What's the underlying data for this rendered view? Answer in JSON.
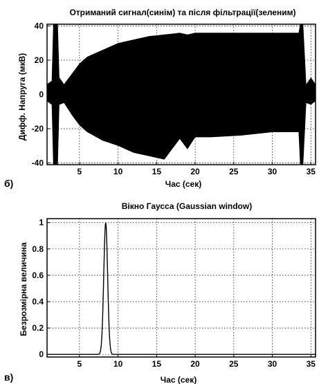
{
  "figure_labels": {
    "top": "б)",
    "bottom": "в)"
  },
  "chart_data": [
    {
      "type": "area",
      "title": "Отриманий сигнал(синім) та після фільтрації(зеленим)",
      "xlabel": "Час (сек)",
      "ylabel": "Дифф. Напруга (мкВ)",
      "xlim": [
        0.8,
        35.6
      ],
      "ylim": [
        -41,
        41
      ],
      "xticks": [
        5,
        10,
        15,
        20,
        25,
        30,
        35
      ],
      "xtick_labels": [
        "5",
        "10",
        "15",
        "20",
        "25",
        "30",
        "35"
      ],
      "yticks": [
        -40,
        -20,
        0,
        20,
        40
      ],
      "ytick_labels": [
        "-40",
        "-20",
        "0",
        "20",
        "40"
      ],
      "grid": true,
      "series": [
        {
          "kind": "envelope",
          "x": [
            0.8,
            1.4,
            1.6,
            2.2,
            2.4,
            3.0,
            4.0,
            5.0,
            6.0,
            8.0,
            10.0,
            12.0,
            14.0,
            16.0,
            18.0,
            19.0,
            20.0,
            22.0,
            26.0,
            30.0,
            33.4,
            33.6,
            34.0,
            34.4,
            35.0,
            35.6
          ],
          "upper": [
            6,
            8,
            41,
            41,
            10,
            6,
            12,
            18,
            22,
            26,
            30,
            32,
            34,
            35,
            36,
            35,
            36,
            36,
            36,
            36,
            36,
            41,
            41,
            6,
            10,
            6
          ],
          "lower": [
            -4,
            -6,
            -41,
            -41,
            -6,
            -5,
            -12,
            -18,
            -22,
            -27,
            -30,
            -34,
            -36,
            -38,
            -26,
            -32,
            -25,
            -25,
            -24,
            -22,
            -22,
            -41,
            -41,
            -5,
            -6,
            -4
          ]
        }
      ]
    },
    {
      "type": "line",
      "title": "Вікно Гаусса (Gaussian window)",
      "xlabel": "Час (сек)",
      "ylabel": "Безрозмірна величина",
      "xlim": [
        0.8,
        35.6
      ],
      "ylim": [
        -0.02,
        1.03
      ],
      "xticks": [
        5,
        10,
        15,
        20,
        25,
        30,
        35
      ],
      "xtick_labels": [
        "5",
        "10",
        "15",
        "20",
        "25",
        "30",
        "35"
      ],
      "yticks": [
        0,
        0.2,
        0.4,
        0.6,
        0.8,
        1
      ],
      "ytick_labels": [
        "0",
        "0.2",
        "0.4",
        "0.6",
        "0.8",
        "1"
      ],
      "grid": true,
      "series": [
        {
          "kind": "gaussian",
          "center": 8.4,
          "sigma": 0.25,
          "peak": 1
        }
      ]
    }
  ]
}
